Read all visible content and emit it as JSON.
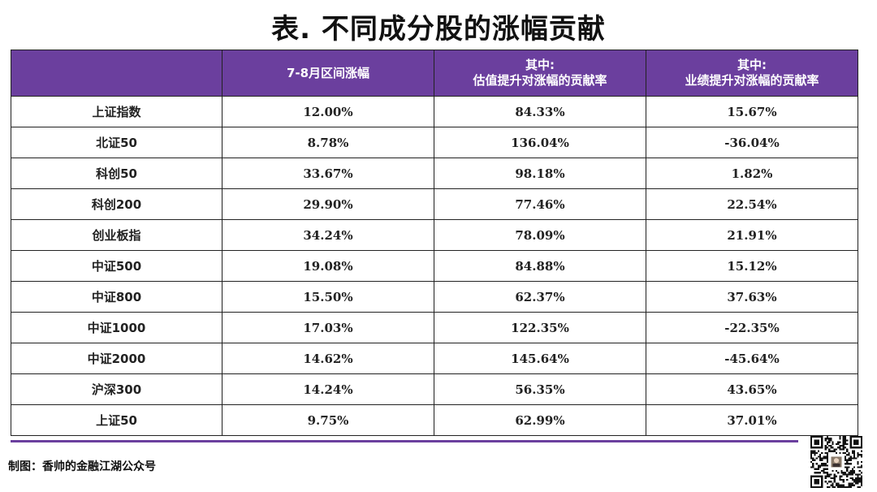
{
  "title": "表. 不同成分股的涨幅贡献",
  "table": {
    "headers": [
      {
        "line1": "",
        "line2": ""
      },
      {
        "line1": "7-8月区间涨幅",
        "line2": ""
      },
      {
        "line1": "其中:",
        "line2": "估值提升对涨幅的贡献率"
      },
      {
        "line1": "其中:",
        "line2": "业绩提升对涨幅的贡献率"
      }
    ],
    "rows": [
      [
        "上证指数",
        "12.00%",
        "84.33%",
        "15.67%"
      ],
      [
        "北证50",
        "8.78%",
        "136.04%",
        "-36.04%"
      ],
      [
        "科创50",
        "33.67%",
        "98.18%",
        "1.82%"
      ],
      [
        "科创200",
        "29.90%",
        "77.46%",
        "22.54%"
      ],
      [
        "创业板指",
        "34.24%",
        "78.09%",
        "21.91%"
      ],
      [
        "中证500",
        "19.08%",
        "84.88%",
        "15.12%"
      ],
      [
        "中证800",
        "15.50%",
        "62.37%",
        "37.63%"
      ],
      [
        "中证1000",
        "17.03%",
        "122.35%",
        "-22.35%"
      ],
      [
        "中证2000",
        "14.62%",
        "145.64%",
        "-45.64%"
      ],
      [
        "沪深300",
        "14.24%",
        "56.35%",
        "43.65%"
      ],
      [
        "上证50",
        "9.75%",
        "62.99%",
        "37.01%"
      ]
    ]
  },
  "footer": {
    "credit": "制图：香帅的金融江湖公众号"
  },
  "colors": {
    "header_bg": "#6b3f9e",
    "header_text": "#ffffff",
    "divider": "#6b3f9e"
  },
  "icons": {
    "qr": "qr-code-icon"
  }
}
